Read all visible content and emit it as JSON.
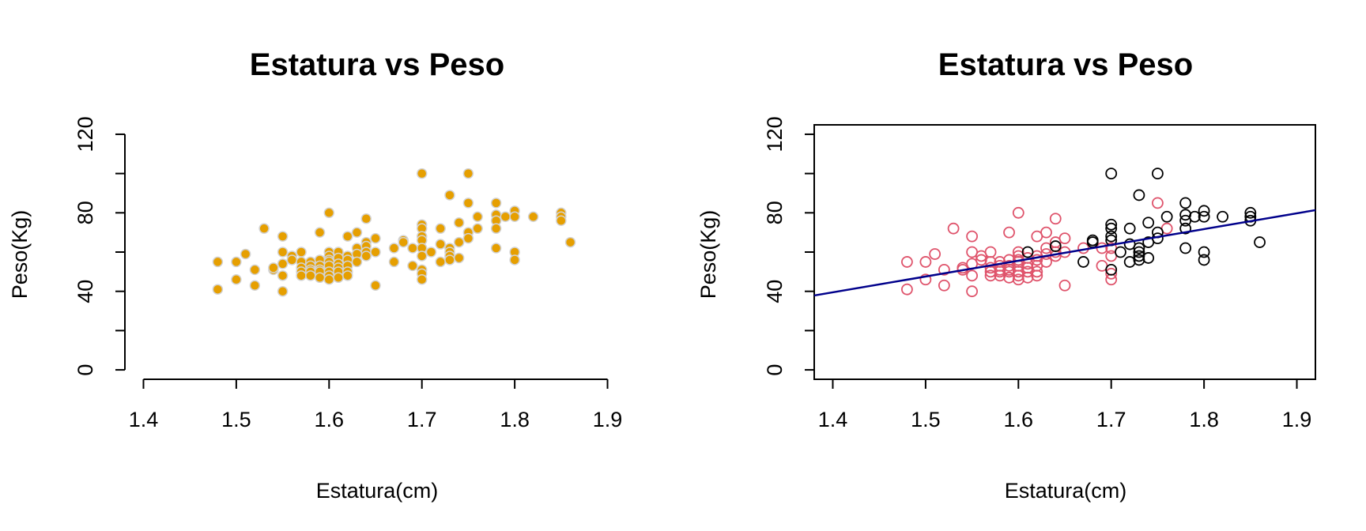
{
  "colors": {
    "left_fill": "#E69F00",
    "left_edge": "#D3D3D3",
    "female": "#DF536B",
    "male": "#000000",
    "regression": "#00008B"
  },
  "chart_data": [
    {
      "type": "scatter",
      "title": "Estatura vs Peso",
      "xlabel": "Estatura(cm)",
      "ylabel": "Peso(Kg)",
      "xlim": [
        1.4,
        1.9
      ],
      "ylim": [
        0,
        120
      ],
      "xticks": [
        "1.4",
        "1.5",
        "1.6",
        "1.7",
        "1.8",
        "1.9"
      ],
      "yticks": [
        "0",
        "40",
        "80",
        "120"
      ],
      "box": false,
      "point_style": "filled",
      "series": [
        {
          "points": [
            [
              1.48,
              55
            ],
            [
              1.48,
              41
            ],
            [
              1.5,
              55
            ],
            [
              1.5,
              46
            ],
            [
              1.51,
              59
            ],
            [
              1.52,
              51
            ],
            [
              1.52,
              43
            ],
            [
              1.53,
              72
            ],
            [
              1.54,
              51
            ],
            [
              1.54,
              52
            ],
            [
              1.55,
              68
            ],
            [
              1.55,
              60
            ],
            [
              1.55,
              54
            ],
            [
              1.55,
              48
            ],
            [
              1.55,
              40
            ],
            [
              1.56,
              58
            ],
            [
              1.56,
              56
            ],
            [
              1.57,
              60
            ],
            [
              1.57,
              55
            ],
            [
              1.57,
              52
            ],
            [
              1.57,
              50
            ],
            [
              1.57,
              48
            ],
            [
              1.58,
              55
            ],
            [
              1.58,
              53
            ],
            [
              1.58,
              51
            ],
            [
              1.58,
              50
            ],
            [
              1.58,
              48
            ],
            [
              1.59,
              70
            ],
            [
              1.59,
              56
            ],
            [
              1.59,
              53
            ],
            [
              1.59,
              51
            ],
            [
              1.59,
              50
            ],
            [
              1.59,
              47
            ],
            [
              1.6,
              80
            ],
            [
              1.6,
              60
            ],
            [
              1.6,
              58
            ],
            [
              1.6,
              56
            ],
            [
              1.6,
              55
            ],
            [
              1.6,
              53
            ],
            [
              1.6,
              50
            ],
            [
              1.6,
              48
            ],
            [
              1.6,
              46
            ],
            [
              1.61,
              60
            ],
            [
              1.61,
              57
            ],
            [
              1.61,
              54
            ],
            [
              1.61,
              52
            ],
            [
              1.61,
              50
            ],
            [
              1.61,
              47
            ],
            [
              1.62,
              68
            ],
            [
              1.62,
              58
            ],
            [
              1.62,
              56
            ],
            [
              1.62,
              53
            ],
            [
              1.62,
              50
            ],
            [
              1.62,
              48
            ],
            [
              1.63,
              70
            ],
            [
              1.63,
              62
            ],
            [
              1.63,
              59
            ],
            [
              1.63,
              55
            ],
            [
              1.64,
              77
            ],
            [
              1.64,
              65
            ],
            [
              1.64,
              63
            ],
            [
              1.64,
              60
            ],
            [
              1.64,
              58
            ],
            [
              1.65,
              67
            ],
            [
              1.65,
              60
            ],
            [
              1.65,
              43
            ],
            [
              1.67,
              62
            ],
            [
              1.67,
              55
            ],
            [
              1.68,
              66
            ],
            [
              1.68,
              65
            ],
            [
              1.69,
              53
            ],
            [
              1.69,
              62
            ],
            [
              1.7,
              100
            ],
            [
              1.7,
              74
            ],
            [
              1.7,
              72
            ],
            [
              1.7,
              68
            ],
            [
              1.7,
              66
            ],
            [
              1.7,
              62
            ],
            [
              1.7,
              58
            ],
            [
              1.7,
              51
            ],
            [
              1.7,
              49
            ],
            [
              1.7,
              46
            ],
            [
              1.71,
              60
            ],
            [
              1.72,
              72
            ],
            [
              1.72,
              64
            ],
            [
              1.72,
              55
            ],
            [
              1.73,
              89
            ],
            [
              1.73,
              62
            ],
            [
              1.73,
              60
            ],
            [
              1.73,
              58
            ],
            [
              1.73,
              56
            ],
            [
              1.74,
              75
            ],
            [
              1.74,
              65
            ],
            [
              1.74,
              57
            ],
            [
              1.75,
              100
            ],
            [
              1.75,
              85
            ],
            [
              1.75,
              70
            ],
            [
              1.75,
              67
            ],
            [
              1.76,
              78
            ],
            [
              1.76,
              72
            ],
            [
              1.78,
              85
            ],
            [
              1.78,
              79
            ],
            [
              1.78,
              76
            ],
            [
              1.78,
              72
            ],
            [
              1.78,
              62
            ],
            [
              1.79,
              78
            ],
            [
              1.8,
              81
            ],
            [
              1.8,
              78
            ],
            [
              1.8,
              60
            ],
            [
              1.8,
              56
            ],
            [
              1.82,
              78
            ],
            [
              1.85,
              80
            ],
            [
              1.85,
              78
            ],
            [
              1.85,
              76
            ],
            [
              1.86,
              65
            ]
          ]
        }
      ]
    },
    {
      "type": "scatter",
      "title": "Estatura vs Peso",
      "xlabel": "Estatura(cm)",
      "ylabel": "Peso(Kg)",
      "xlim": [
        1.4,
        1.9
      ],
      "ylim": [
        0,
        120
      ],
      "xticks": [
        "1.4",
        "1.5",
        "1.6",
        "1.7",
        "1.8",
        "1.9"
      ],
      "yticks": [
        "0",
        "40",
        "80",
        "120"
      ],
      "box": true,
      "point_style": "open",
      "series": [
        {
          "color_key": "female",
          "points": [
            [
              1.48,
              55
            ],
            [
              1.48,
              41
            ],
            [
              1.5,
              55
            ],
            [
              1.5,
              46
            ],
            [
              1.51,
              59
            ],
            [
              1.52,
              51
            ],
            [
              1.52,
              43
            ],
            [
              1.53,
              72
            ],
            [
              1.54,
              51
            ],
            [
              1.54,
              52
            ],
            [
              1.55,
              68
            ],
            [
              1.55,
              60
            ],
            [
              1.55,
              54
            ],
            [
              1.55,
              48
            ],
            [
              1.55,
              40
            ],
            [
              1.56,
              58
            ],
            [
              1.56,
              56
            ],
            [
              1.57,
              60
            ],
            [
              1.57,
              55
            ],
            [
              1.57,
              52
            ],
            [
              1.57,
              50
            ],
            [
              1.57,
              48
            ],
            [
              1.58,
              55
            ],
            [
              1.58,
              53
            ],
            [
              1.58,
              51
            ],
            [
              1.58,
              50
            ],
            [
              1.58,
              48
            ],
            [
              1.59,
              70
            ],
            [
              1.59,
              56
            ],
            [
              1.59,
              53
            ],
            [
              1.59,
              51
            ],
            [
              1.59,
              50
            ],
            [
              1.59,
              47
            ],
            [
              1.6,
              80
            ],
            [
              1.6,
              60
            ],
            [
              1.6,
              58
            ],
            [
              1.6,
              56
            ],
            [
              1.6,
              55
            ],
            [
              1.6,
              53
            ],
            [
              1.6,
              50
            ],
            [
              1.6,
              48
            ],
            [
              1.6,
              46
            ],
            [
              1.61,
              57
            ],
            [
              1.61,
              54
            ],
            [
              1.61,
              52
            ],
            [
              1.61,
              50
            ],
            [
              1.61,
              47
            ],
            [
              1.62,
              68
            ],
            [
              1.62,
              58
            ],
            [
              1.62,
              56
            ],
            [
              1.62,
              53
            ],
            [
              1.62,
              50
            ],
            [
              1.62,
              48
            ],
            [
              1.63,
              70
            ],
            [
              1.63,
              62
            ],
            [
              1.63,
              59
            ],
            [
              1.63,
              55
            ],
            [
              1.64,
              77
            ],
            [
              1.64,
              65
            ],
            [
              1.64,
              60
            ],
            [
              1.64,
              58
            ],
            [
              1.65,
              67
            ],
            [
              1.65,
              60
            ],
            [
              1.65,
              43
            ],
            [
              1.67,
              62
            ],
            [
              1.69,
              53
            ],
            [
              1.69,
              62
            ],
            [
              1.7,
              62
            ],
            [
              1.7,
              58
            ],
            [
              1.7,
              49
            ],
            [
              1.7,
              46
            ],
            [
              1.75,
              85
            ],
            [
              1.76,
              72
            ]
          ]
        },
        {
          "color_key": "male",
          "points": [
            [
              1.61,
              60
            ],
            [
              1.64,
              63
            ],
            [
              1.67,
              55
            ],
            [
              1.68,
              66
            ],
            [
              1.68,
              65
            ],
            [
              1.7,
              100
            ],
            [
              1.7,
              74
            ],
            [
              1.7,
              72
            ],
            [
              1.7,
              68
            ],
            [
              1.7,
              66
            ],
            [
              1.7,
              51
            ],
            [
              1.71,
              60
            ],
            [
              1.72,
              72
            ],
            [
              1.72,
              64
            ],
            [
              1.72,
              55
            ],
            [
              1.73,
              89
            ],
            [
              1.73,
              62
            ],
            [
              1.73,
              60
            ],
            [
              1.73,
              58
            ],
            [
              1.73,
              56
            ],
            [
              1.74,
              75
            ],
            [
              1.74,
              65
            ],
            [
              1.74,
              57
            ],
            [
              1.75,
              100
            ],
            [
              1.75,
              70
            ],
            [
              1.75,
              67
            ],
            [
              1.76,
              78
            ],
            [
              1.78,
              85
            ],
            [
              1.78,
              79
            ],
            [
              1.78,
              76
            ],
            [
              1.78,
              72
            ],
            [
              1.78,
              62
            ],
            [
              1.79,
              78
            ],
            [
              1.8,
              81
            ],
            [
              1.8,
              78
            ],
            [
              1.8,
              60
            ],
            [
              1.8,
              56
            ],
            [
              1.82,
              78
            ],
            [
              1.85,
              80
            ],
            [
              1.85,
              78
            ],
            [
              1.85,
              76
            ],
            [
              1.86,
              65
            ]
          ]
        }
      ],
      "regression_line": {
        "intercept": -73.2,
        "slope": 80.5
      }
    }
  ]
}
